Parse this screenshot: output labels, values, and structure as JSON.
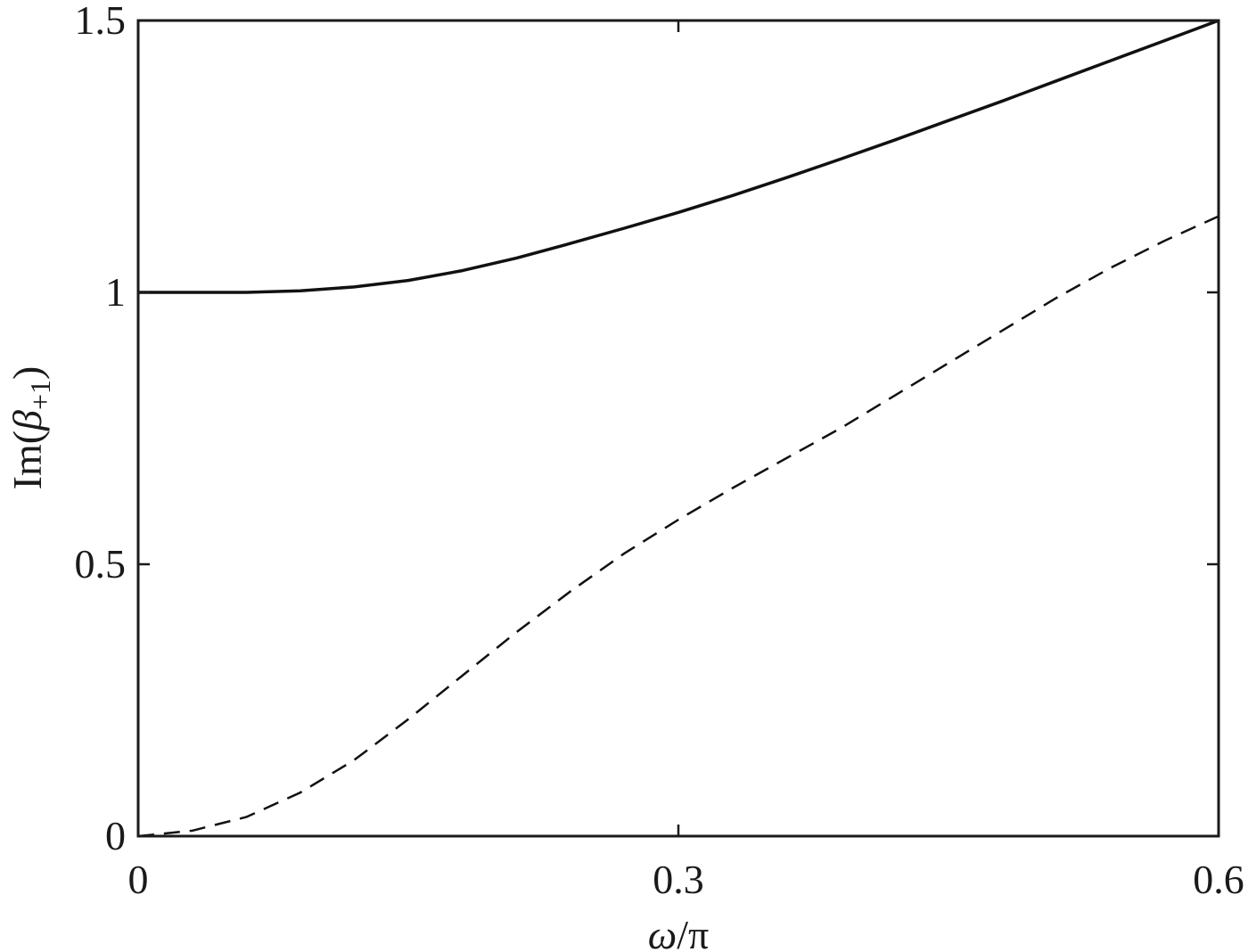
{
  "chart_data": {
    "type": "line",
    "title": "",
    "xlabel_parts": [
      "ω",
      "/π"
    ],
    "ylabel_parts": [
      "Im(",
      "β",
      "+1",
      ")"
    ],
    "xlim": [
      0,
      0.6
    ],
    "ylim": [
      0,
      1.5
    ],
    "xticks": [
      0,
      0.3,
      0.6
    ],
    "xtick_labels": [
      "0",
      "0.3",
      "0.6"
    ],
    "yticks": [
      0,
      0.5,
      1,
      1.5
    ],
    "ytick_labels": [
      "0",
      "0.5",
      "1",
      "1.5"
    ],
    "grid": false,
    "legend": "none",
    "series": [
      {
        "style": "solid",
        "color": "#111111",
        "x": [
          0,
          0.03,
          0.06,
          0.09,
          0.12,
          0.15,
          0.18,
          0.21,
          0.24,
          0.27,
          0.3,
          0.33,
          0.36,
          0.39,
          0.42,
          0.45,
          0.48,
          0.51,
          0.54,
          0.57,
          0.6
        ],
        "y": [
          1.0,
          1.0,
          1.0,
          1.003,
          1.01,
          1.022,
          1.04,
          1.063,
          1.09,
          1.118,
          1.147,
          1.178,
          1.211,
          1.245,
          1.28,
          1.316,
          1.352,
          1.389,
          1.426,
          1.463,
          1.5
        ]
      },
      {
        "style": "dashed",
        "color": "#111111",
        "x": [
          0,
          0.03,
          0.06,
          0.09,
          0.12,
          0.15,
          0.18,
          0.21,
          0.24,
          0.27,
          0.3,
          0.33,
          0.36,
          0.39,
          0.42,
          0.45,
          0.48,
          0.51,
          0.54,
          0.57,
          0.6
        ],
        "y": [
          0.0,
          0.01,
          0.035,
          0.08,
          0.14,
          0.215,
          0.295,
          0.375,
          0.45,
          0.52,
          0.582,
          0.64,
          0.695,
          0.75,
          0.81,
          0.87,
          0.93,
          0.99,
          1.045,
          1.095,
          1.14
        ]
      }
    ]
  }
}
